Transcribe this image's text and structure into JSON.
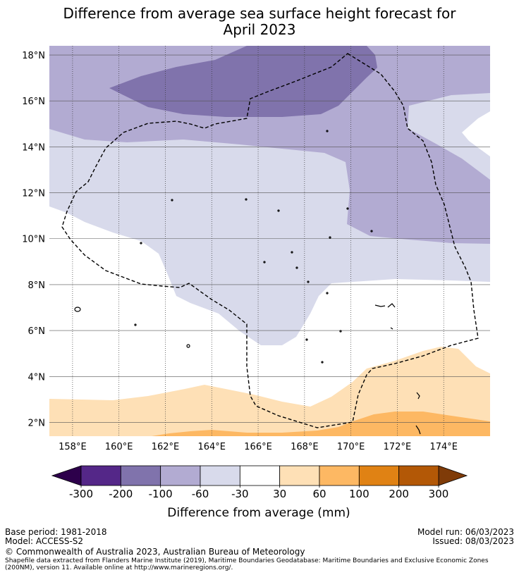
{
  "chart_data": {
    "type": "heatmap",
    "title_line1": "Difference from average sea surface height forecast for",
    "title_line2": "April 2023",
    "xlabel": "",
    "ylabel": "",
    "x_range_deg": [
      157,
      176
    ],
    "y_range_deg": [
      1.4,
      18.4
    ],
    "x_ticks": [
      {
        "value": 158,
        "label": "158°E"
      },
      {
        "value": 160,
        "label": "160°E"
      },
      {
        "value": 162,
        "label": "162°E"
      },
      {
        "value": 164,
        "label": "164°E"
      },
      {
        "value": 166,
        "label": "166°E"
      },
      {
        "value": 168,
        "label": "168°E"
      },
      {
        "value": 170,
        "label": "170°E"
      },
      {
        "value": 172,
        "label": "172°E"
      },
      {
        "value": 174,
        "label": "174°E"
      }
    ],
    "y_ticks": [
      {
        "value": 2,
        "label": "2°N"
      },
      {
        "value": 4,
        "label": "4°N"
      },
      {
        "value": 6,
        "label": "6°N"
      },
      {
        "value": 8,
        "label": "8°N"
      },
      {
        "value": 10,
        "label": "10°N"
      },
      {
        "value": 12,
        "label": "12°N"
      },
      {
        "value": 14,
        "label": "14°N"
      },
      {
        "value": 16,
        "label": "16°N"
      },
      {
        "value": 18,
        "label": "18°N"
      }
    ],
    "grid": true,
    "colorbar": {
      "label": "Difference from average (mm)",
      "tick_labels": [
        "-300",
        "-200",
        "-100",
        "-60",
        "-30",
        "30",
        "60",
        "100",
        "200",
        "300"
      ],
      "under_color": "#2d004b",
      "over_color": "#7f3b08",
      "colors": [
        "#542788",
        "#8073ac",
        "#b2abd2",
        "#d8daeb",
        "#ffffff",
        "#fee0b6",
        "#fdb863",
        "#e08214",
        "#b35806"
      ]
    },
    "regions": [
      {
        "name": "-60 to -30 mm",
        "color": "#d8daeb"
      },
      {
        "name": "-100 to -60 mm",
        "color": "#b2abd2"
      },
      {
        "name": "-200 to -100 mm",
        "color": "#8073ac"
      },
      {
        "name": "30 to 60 mm",
        "color": "#fee0b6"
      },
      {
        "name": "60 to 100 mm",
        "color": "#fdb863"
      }
    ]
  },
  "footer": {
    "base_period": "Base period: 1981-2018",
    "model": "Model: ACCESS-S2",
    "model_run": "Model run: 06/03/2023",
    "issued": "Issued: 08/03/2023",
    "copyright": "© Commonwealth of Australia 2023, Australian Bureau of Meteorology",
    "shapefile_line1": "Shapefile data extracted from Flanders Marine Institute (2019), Maritime Boundaries Geodatabase: Maritime Boundaries and Exclusive Economic Zones",
    "shapefile_line2": "(200NM), version 11. Available online at http://www.marineregions.org/."
  }
}
